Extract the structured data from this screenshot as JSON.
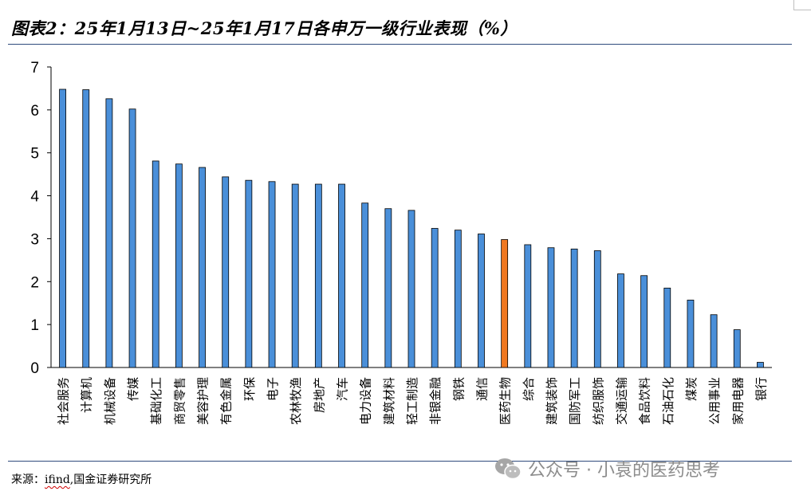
{
  "figure": {
    "title": "图表2：25年1月13日~25年1月17日各申万一级行业表现（%）",
    "source_label": "来源：",
    "source_highlight": "ifind",
    "source_rest": ",国金证券研究所",
    "watermark": "公众号 · 小袁的医药思考",
    "watermark_icon": "wechat-icon"
  },
  "chart_data": {
    "type": "bar",
    "title": "图表2：25年1月13日~25年1月17日各申万一级行业表现（%）",
    "xlabel": "",
    "ylabel": "",
    "ylim": [
      0,
      7
    ],
    "yticks": [
      0,
      1,
      2,
      3,
      4,
      5,
      6,
      7
    ],
    "grid": false,
    "legend": "none",
    "colors": {
      "default": "#4a8fd9",
      "highlight": "#f07820",
      "outline": "#000000"
    },
    "highlight_category": "医药生物",
    "categories": [
      "社会服务",
      "计算机",
      "机械设备",
      "传媒",
      "基础化工",
      "商贸零售",
      "美容护理",
      "有色金属",
      "环保",
      "电子",
      "农林牧渔",
      "房地产",
      "汽车",
      "电力设备",
      "建筑材料",
      "轻工制造",
      "非银金融",
      "钢铁",
      "通信",
      "医药生物",
      "综合",
      "建筑装饰",
      "国防军工",
      "纺织服饰",
      "交通运输",
      "食品饮料",
      "石油石化",
      "煤炭",
      "公用事业",
      "家用电器",
      "银行"
    ],
    "values": [
      6.48,
      6.47,
      6.26,
      6.02,
      4.81,
      4.74,
      4.66,
      4.44,
      4.36,
      4.33,
      4.27,
      4.27,
      4.27,
      3.83,
      3.7,
      3.66,
      3.24,
      3.2,
      3.11,
      2.98,
      2.86,
      2.79,
      2.76,
      2.72,
      2.18,
      2.14,
      1.85,
      1.57,
      1.23,
      0.88,
      0.12
    ]
  }
}
